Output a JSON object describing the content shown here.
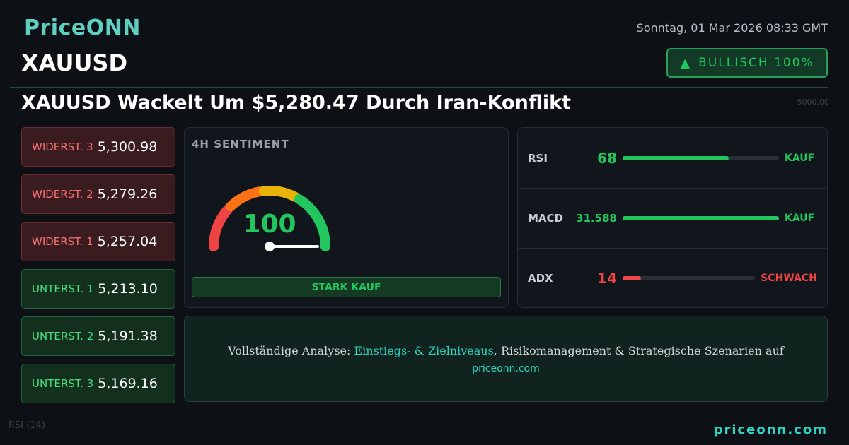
{
  "header": {
    "logo": "PriceONN",
    "symbol": "XAUUSD",
    "date": "Sonntag, 01 Mar 2026 08:33 GMT",
    "badge": "BULLISCH 100%",
    "headline": "XAUUSD Wackelt Um $5,280.47 Durch Iran-Konflikt"
  },
  "background": {
    "price_label": "5000.00",
    "indicator": "RSI",
    "period": "(14)"
  },
  "levels": [
    {
      "kind": "resistance",
      "label": "WIDERST. 3",
      "value": "5,300.98"
    },
    {
      "kind": "resistance",
      "label": "WIDERST. 2",
      "value": "5,279.26"
    },
    {
      "kind": "resistance",
      "label": "WIDERST. 1",
      "value": "5,257.04"
    },
    {
      "kind": "support",
      "label": "UNTERST. 1",
      "value": "5,213.10"
    },
    {
      "kind": "support",
      "label": "UNTERST. 2",
      "value": "5,191.38"
    },
    {
      "kind": "support",
      "label": "UNTERST. 3",
      "value": "5,169.16"
    }
  ],
  "sentiment": {
    "title": "4H SENTIMENT",
    "value": 100,
    "verdict": "STARK KAUF"
  },
  "indicators": [
    {
      "name": "RSI",
      "value": 68,
      "signal": "KAUF",
      "color": "#22c55e"
    },
    {
      "name": "MACD",
      "value": 31.588,
      "signal": "KAUF",
      "color": "#22c55e"
    },
    {
      "name": "ADX",
      "value": 14,
      "signal": "SCHWACH",
      "color": "#ef4444"
    }
  ],
  "footer": {
    "text_before": "Vollständige Analyse:",
    "link": "Einstiegs- & Zielniveaus",
    "text_after": ", Risikomanagement & Strategische Szenarien auf",
    "site": "priceonn.com",
    "brand": "priceonn.com"
  }
}
